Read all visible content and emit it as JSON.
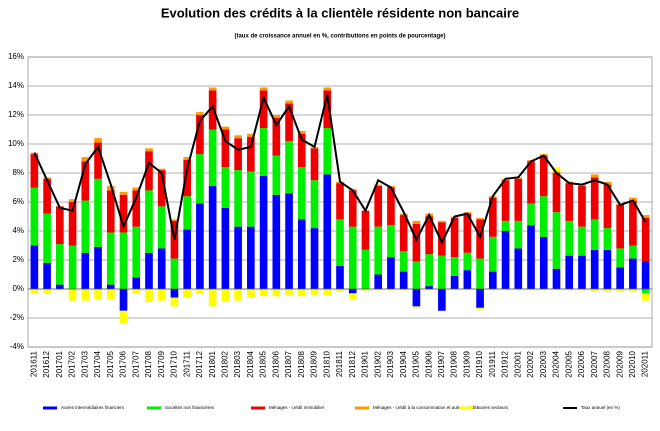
{
  "chart_data": {
    "type": "bar",
    "stacked": true,
    "title": "Evolution des crédits à la clientèle résidente non bancaire",
    "subtitle": "(taux de croissance annuel en %, contributions en points de pourcentage)",
    "categories": [
      "201611",
      "201612",
      "201701",
      "201702",
      "201703",
      "201704",
      "201705",
      "201706",
      "201707",
      "201708",
      "201709",
      "201710",
      "201711",
      "201712",
      "201801",
      "201802",
      "201803",
      "201804",
      "201805",
      "201806",
      "201807",
      "201808",
      "201809",
      "201810",
      "201811",
      "201812",
      "201901",
      "201902",
      "201903",
      "201904",
      "201905",
      "201906",
      "201907",
      "201908",
      "201909",
      "201910",
      "201911",
      "201912",
      "202001",
      "202002",
      "202003",
      "202004",
      "202005",
      "202006",
      "202007",
      "202008",
      "202009",
      "202010",
      "202011"
    ],
    "ylim": [
      -4,
      16
    ],
    "yticks": [
      {
        "value": -4,
        "label": "-4%"
      },
      {
        "value": -2,
        "label": "-2%"
      },
      {
        "value": 0,
        "label": "0%"
      },
      {
        "value": 2,
        "label": "2%"
      },
      {
        "value": 4,
        "label": "4%"
      },
      {
        "value": 6,
        "label": "6%"
      },
      {
        "value": 8,
        "label": "8%"
      },
      {
        "value": 10,
        "label": "10%"
      },
      {
        "value": 12,
        "label": "12%"
      },
      {
        "value": 14,
        "label": "14%"
      },
      {
        "value": 16,
        "label": "16%"
      }
    ],
    "grid": true,
    "series": [
      {
        "name": "Autres intermédiaires financiers",
        "color": "#0000ff",
        "values": [
          3.0,
          1.8,
          0.3,
          0,
          2.5,
          2.9,
          0.3,
          -1.5,
          0.8,
          2.5,
          2.8,
          -0.6,
          4.1,
          5.9,
          7.1,
          5.6,
          4.3,
          4.3,
          7.8,
          6.5,
          6.6,
          4.8,
          4.2,
          7.9,
          1.6,
          -0.3,
          0,
          1.0,
          2.2,
          1.2,
          -1.2,
          0.2,
          -1.5,
          0.9,
          1.3,
          -1.3,
          1.2,
          4.0,
          2.8,
          4.4,
          3.6,
          1.4,
          2.3,
          2.3,
          2.7,
          2.7,
          1.5,
          2.1,
          1.9
        ]
      },
      {
        "name": "Sociétés non financières",
        "color": "#00ee00",
        "values": [
          4.0,
          3.4,
          2.8,
          3.0,
          3.6,
          4.7,
          3.6,
          3.9,
          3.5,
          4.3,
          2.9,
          2.1,
          2.3,
          3.4,
          3.9,
          2.8,
          3.9,
          3.8,
          3.3,
          2.7,
          3.6,
          3.6,
          3.3,
          3.2,
          3.2,
          4.3,
          2.7,
          3.3,
          2.2,
          1.4,
          1.9,
          2.2,
          2.3,
          1.3,
          1.2,
          2.1,
          2.4,
          0.7,
          1.9,
          1.5,
          2.8,
          3.9,
          2.4,
          2.0,
          2.1,
          1.5,
          1.3,
          0.9,
          -0.3
        ]
      },
      {
        "name": "Ménages - crédit immobilier",
        "color": "#ee0000",
        "values": [
          2.3,
          2.4,
          2.6,
          3.0,
          2.7,
          2.5,
          2.9,
          2.6,
          2.5,
          2.7,
          2.5,
          2.6,
          2.5,
          2.7,
          2.7,
          2.6,
          2.2,
          2.4,
          2.6,
          2.6,
          2.6,
          2.3,
          2.2,
          2.6,
          2.5,
          2.5,
          2.7,
          2.8,
          2.6,
          2.5,
          2.6,
          2.6,
          2.3,
          2.7,
          2.7,
          2.7,
          2.7,
          2.8,
          2.9,
          2.9,
          2.8,
          2.7,
          2.6,
          2.8,
          2.9,
          3.0,
          3.0,
          3.1,
          3.0
        ]
      },
      {
        "name": "Ménages - crédit à la consommation et autres crédits",
        "color": "#ff9900",
        "values": [
          0.1,
          0.1,
          0,
          0.2,
          0.3,
          0.3,
          0.3,
          0.2,
          0.2,
          0.2,
          0.1,
          0.1,
          0.2,
          0.2,
          0.2,
          0.2,
          0.2,
          0.2,
          0.2,
          0.2,
          0.2,
          0.2,
          0.1,
          0.2,
          0.1,
          0.1,
          0,
          0.1,
          0.1,
          0.1,
          0.2,
          0.2,
          0.1,
          0.1,
          0.1,
          0.1,
          0.1,
          0.1,
          0.1,
          0.1,
          0.1,
          0.1,
          0.1,
          0.1,
          0.2,
          0.2,
          0.1,
          0.2,
          0.2
        ]
      },
      {
        "name": "Autres secteurs",
        "color": "#ffff00",
        "values": [
          -0.3,
          -0.3,
          -0.1,
          -0.8,
          -0.8,
          -0.7,
          -0.7,
          -0.9,
          -0.3,
          -0.9,
          -0.8,
          -0.6,
          -0.6,
          -0.3,
          -1.2,
          -0.9,
          -0.8,
          -0.6,
          -0.5,
          -0.5,
          -0.4,
          -0.5,
          -0.4,
          -0.4,
          -0.2,
          -0.4,
          -0.1,
          -0.1,
          -0.1,
          -0.1,
          -0.1,
          -0.1,
          0,
          0,
          0,
          -0.1,
          0,
          0,
          0,
          0,
          0,
          0.3,
          0,
          -0.1,
          -0.2,
          -0.2,
          -0.2,
          -0.2,
          -0.5
        ]
      },
      {
        "name": "Taux annuel (en %)",
        "color": "#000000",
        "type": "line",
        "values": [
          9.4,
          7.5,
          5.6,
          5.4,
          8.6,
          9.8,
          7.2,
          4.3,
          6.3,
          8.7,
          8.0,
          3.4,
          8.3,
          11.6,
          12.6,
          10.2,
          9.6,
          9.8,
          13.2,
          11.3,
          12.6,
          10.3,
          9.8,
          13.4,
          7.4,
          6.8,
          5.4,
          7.5,
          7.0,
          5.3,
          3.4,
          5.1,
          3.2,
          5.0,
          5.2,
          3.6,
          6.4,
          7.6,
          7.7,
          8.8,
          9.2,
          8.0,
          7.3,
          7.2,
          7.5,
          7.2,
          5.8,
          6.1,
          4.6
        ]
      }
    ]
  }
}
